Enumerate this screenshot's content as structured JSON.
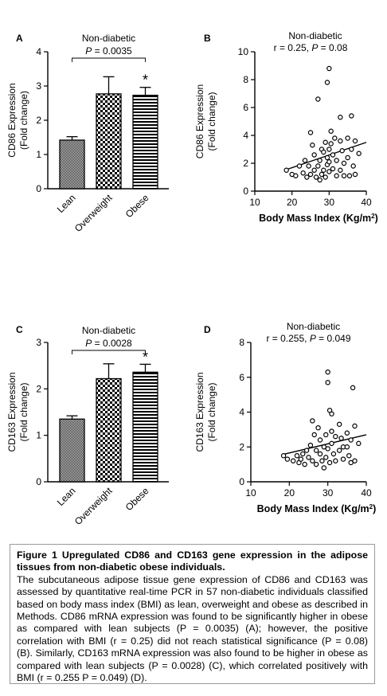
{
  "colors": {
    "ink": "#000000",
    "bar_fill": "#ffffff",
    "caption_border": "#9a9a9a"
  },
  "patterns": {
    "lean": "checkerboard-fine",
    "overweight": "checkerboard-coarse",
    "obese": "horizontal-stripes"
  },
  "chart_data": [
    {
      "panel": "A",
      "type": "bar",
      "title": "Non-diabetic",
      "ylabel_line1": "CD86 Expression",
      "ylabel_line2": "(Fold change)",
      "categories": [
        "Lean",
        "Overweight",
        "Obese"
      ],
      "values": [
        1.42,
        2.77,
        2.73
      ],
      "errors": [
        0.1,
        0.5,
        0.23
      ],
      "ylim": [
        0,
        4
      ],
      "yticks": [
        "0",
        "1",
        "2",
        "3",
        "4"
      ],
      "bracket_p_label": "P",
      "bracket_p_value": " = 0.0035",
      "significance": "*"
    },
    {
      "panel": "B",
      "type": "scatter",
      "title": "Non-diabetic",
      "stat_r": "r = 0.25, ",
      "stat_p_label": "P",
      "stat_p_value": " = 0.08",
      "ylabel_line1": "CD86 Expression",
      "ylabel_line2": "(Fold change)",
      "xlabel_main": "Body Mass Index (Kg/m",
      "xlabel_sup": "2",
      "xlabel_end": ")",
      "xlim": [
        10,
        40
      ],
      "ylim": [
        0,
        10
      ],
      "xticks": [
        "10",
        "20",
        "30",
        "40"
      ],
      "yticks": [
        "0",
        "2",
        "4",
        "6",
        "8",
        "10"
      ],
      "trendline": [
        [
          18,
          1.5
        ],
        [
          40,
          3.5
        ]
      ],
      "points": [
        [
          18.5,
          1.5
        ],
        [
          20,
          1.2
        ],
        [
          21,
          1.1
        ],
        [
          22,
          1.8
        ],
        [
          23,
          1.3
        ],
        [
          23.5,
          2.2
        ],
        [
          24,
          1.0
        ],
        [
          24.5,
          1.8
        ],
        [
          25,
          4.2
        ],
        [
          25,
          1.2
        ],
        [
          25.5,
          3.3
        ],
        [
          26,
          2.6
        ],
        [
          26,
          1.5
        ],
        [
          26.5,
          1.0
        ],
        [
          27,
          6.6
        ],
        [
          27,
          1.8
        ],
        [
          27.5,
          2.2
        ],
        [
          27.5,
          0.8
        ],
        [
          28,
          3.0
        ],
        [
          28,
          1.2
        ],
        [
          28.5,
          2.8
        ],
        [
          28.5,
          1.5
        ],
        [
          29,
          3.5
        ],
        [
          29,
          1.0
        ],
        [
          29.5,
          2.4
        ],
        [
          29.5,
          1.9
        ],
        [
          29.5,
          7.8
        ],
        [
          30,
          8.8
        ],
        [
          30,
          3.0
        ],
        [
          30,
          2.1
        ],
        [
          30,
          1.4
        ],
        [
          30.5,
          4.3
        ],
        [
          30.5,
          3.4
        ],
        [
          31,
          2.6
        ],
        [
          31,
          1.6
        ],
        [
          31.5,
          3.8
        ],
        [
          32,
          2.2
        ],
        [
          32,
          1.1
        ],
        [
          33,
          5.3
        ],
        [
          33,
          3.6
        ],
        [
          33,
          1.5
        ],
        [
          33.5,
          2.9
        ],
        [
          34,
          2.0
        ],
        [
          34,
          1.1
        ],
        [
          35,
          3.8
        ],
        [
          35,
          2.4
        ],
        [
          35.5,
          1.1
        ],
        [
          36,
          5.4
        ],
        [
          36,
          3.0
        ],
        [
          36.5,
          1.8
        ],
        [
          37,
          3.6
        ],
        [
          37,
          1.2
        ],
        [
          38,
          2.7
        ]
      ]
    },
    {
      "panel": "C",
      "type": "bar",
      "title": "Non-diabetic",
      "ylabel_line1": "CD163 Expression",
      "ylabel_line2": "(Fold change)",
      "categories": [
        "Lean",
        "Overweight",
        "Obese"
      ],
      "values": [
        1.35,
        2.22,
        2.36
      ],
      "errors": [
        0.07,
        0.32,
        0.17
      ],
      "ylim": [
        0,
        3
      ],
      "yticks": [
        "0",
        "1",
        "2",
        "3"
      ],
      "bracket_p_label": "P",
      "bracket_p_value": " = 0.0028",
      "significance": "*"
    },
    {
      "panel": "D",
      "type": "scatter",
      "title": "Non-diabetic",
      "stat_r": "r = 0.255, ",
      "stat_p_label": "P",
      "stat_p_value": " = 0.049",
      "ylabel_line1": "CD163 Expression",
      "ylabel_line2": "(Fold change)",
      "xlabel_main": "Body Mass Index (Kg/m",
      "xlabel_sup": "2",
      "xlabel_end": ")",
      "xlim": [
        10,
        40
      ],
      "ylim": [
        0,
        8
      ],
      "xticks": [
        "10",
        "20",
        "30",
        "40"
      ],
      "yticks": [
        "0",
        "2",
        "4",
        "6",
        "8"
      ],
      "trendline": [
        [
          18,
          1.55
        ],
        [
          40,
          2.7
        ]
      ],
      "points": [
        [
          18.5,
          1.5
        ],
        [
          19.5,
          1.3
        ],
        [
          21,
          1.2
        ],
        [
          22,
          1.5
        ],
        [
          22.5,
          1.1
        ],
        [
          23,
          1.3
        ],
        [
          23.5,
          1.6
        ],
        [
          24,
          1.0
        ],
        [
          24.5,
          1.8
        ],
        [
          25,
          1.4
        ],
        [
          25.5,
          2.1
        ],
        [
          26,
          3.5
        ],
        [
          26,
          1.2
        ],
        [
          26.5,
          2.7
        ],
        [
          27,
          1.8
        ],
        [
          27,
          1.0
        ],
        [
          27.5,
          3.1
        ],
        [
          28,
          2.4
        ],
        [
          28,
          1.6
        ],
        [
          28.5,
          1.2
        ],
        [
          29,
          2.0
        ],
        [
          29,
          0.8
        ],
        [
          29.5,
          2.7
        ],
        [
          29.5,
          1.4
        ],
        [
          30,
          6.3
        ],
        [
          30,
          5.7
        ],
        [
          30,
          1.9
        ],
        [
          30.5,
          4.1
        ],
        [
          30.5,
          1.1
        ],
        [
          31,
          3.9
        ],
        [
          31,
          2.9
        ],
        [
          31,
          2.2
        ],
        [
          31.5,
          1.6
        ],
        [
          32,
          2.6
        ],
        [
          32,
          1.2
        ],
        [
          33,
          3.3
        ],
        [
          33,
          1.8
        ],
        [
          33.5,
          2.5
        ],
        [
          34,
          2.0
        ],
        [
          34,
          1.3
        ],
        [
          35,
          2.8
        ],
        [
          35,
          2.0
        ],
        [
          35.5,
          1.5
        ],
        [
          36,
          2.4
        ],
        [
          36,
          1.1
        ],
        [
          36.5,
          5.4
        ],
        [
          37,
          3.2
        ],
        [
          37,
          1.2
        ],
        [
          38,
          2.2
        ]
      ]
    }
  ],
  "caption": {
    "title": "Figure 1 Upregulated CD86 and CD163 gene expression in the adipose tissues from non-diabetic obese individuals.",
    "body": "The subcutaneous adipose tissue gene expression of CD86 and CD163 was assessed by quantitative real-time PCR in 57 non-diabetic individuals classified based on body mass index (BMI) as lean, overweight and obese as described in Methods. CD86 mRNA expression was found to be significantly higher in obese as compared with lean subjects (P = 0.0035) (A); however, the positive correlation with BMI (r = 0.25) did not reach statistical significance (P = 0.08) (B). Similarly, CD163 mRNA expression was also found to be higher in obese as compared with lean subjects (P = 0.0028) (C), which correlated positively with BMI (r = 0.255 P = 0.049) (D)."
  }
}
